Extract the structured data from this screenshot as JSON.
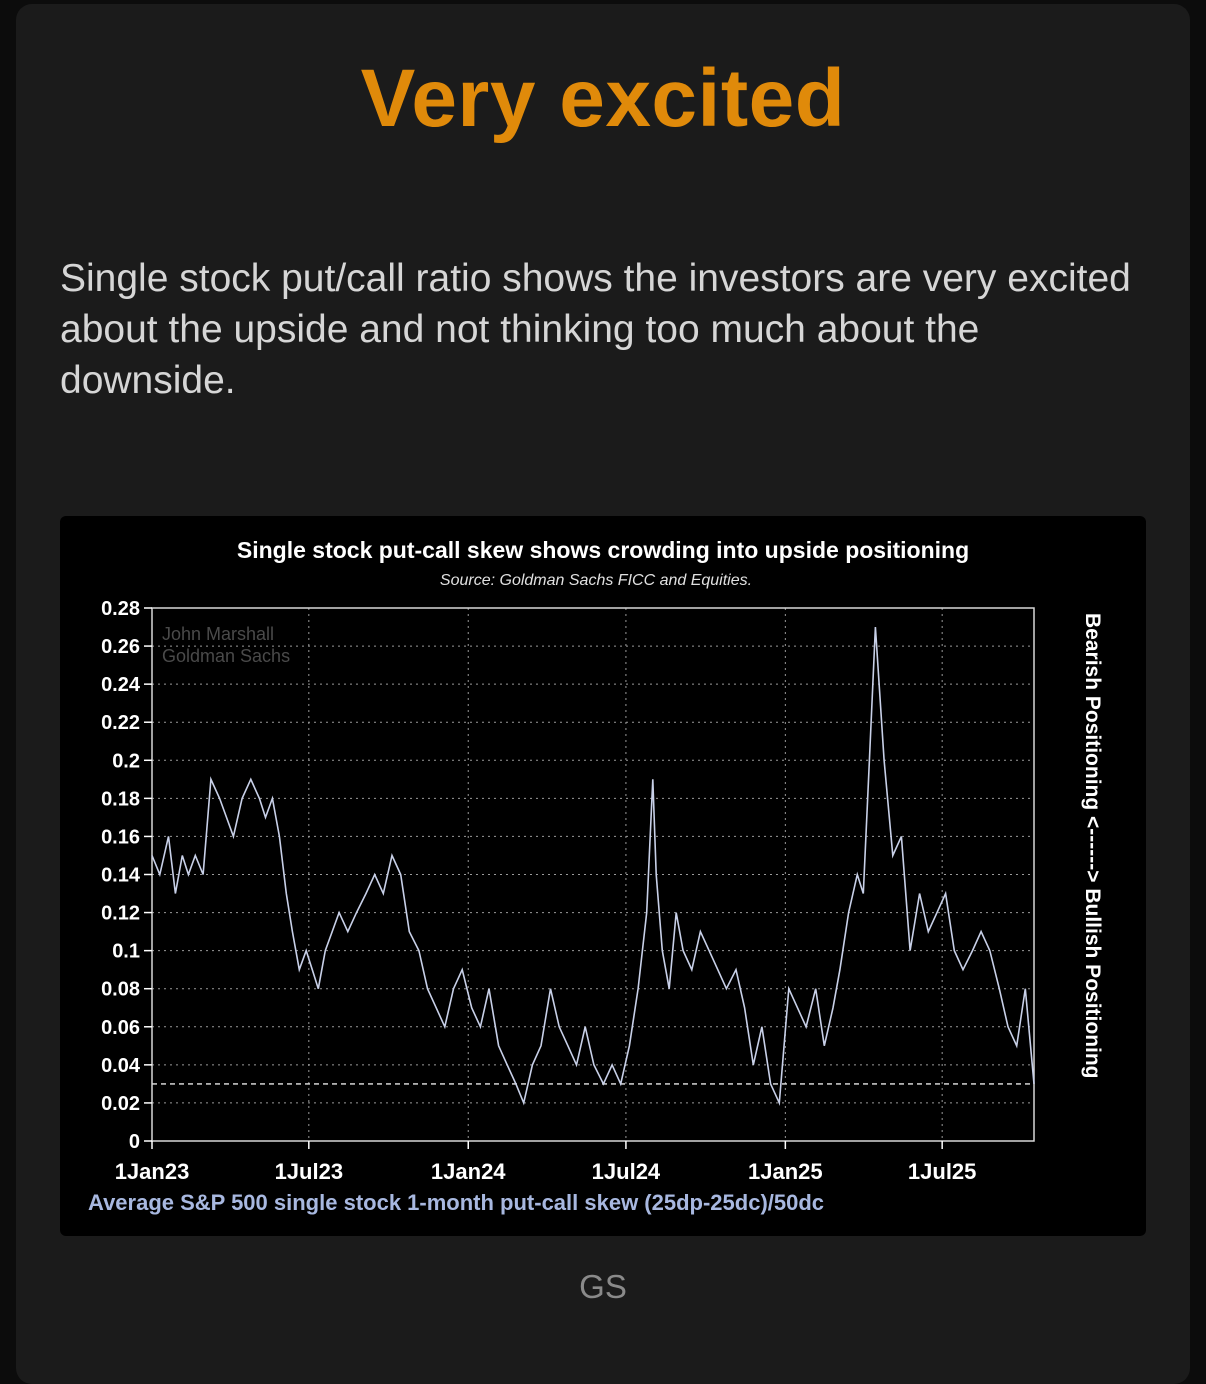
{
  "post": {
    "headline": "Very excited",
    "body": "Single stock put/call ratio shows the investors are very excited about the upside and not thinking too much about the downside.",
    "caption": "GS"
  },
  "colors": {
    "headline": "#e08a0a",
    "card_bg": "#1b1b1b",
    "line": "#c8d0e8",
    "footer_label": "#a8b8e0"
  },
  "chart_data": {
    "type": "line",
    "title": "Single stock put-call skew shows crowding into upside positioning",
    "subtitle": "Source: Goldman Sachs FICC and Equities.",
    "watermark": [
      "John Marshall",
      "Goldman Sachs"
    ],
    "right_label": "Bearish Positioning <------> Bullish Positioning",
    "xlabel": "Average S&P 500 single stock 1-month put-call skew (25dp-25dc)/50dc",
    "xticks": [
      "1Jan23",
      "1Jul23",
      "1Jan24",
      "1Jul24",
      "1Jan25",
      "1Jul25"
    ],
    "yticks": [
      "0",
      "0.02",
      "0.04",
      "0.06",
      "0.08",
      "0.1",
      "0.12",
      "0.14",
      "0.16",
      "0.18",
      "0.2",
      "0.22",
      "0.24",
      "0.26",
      "0.28"
    ],
    "ylim": [
      0,
      0.28
    ],
    "xlim": [
      "2023-01-01",
      "2025-10-15"
    ],
    "grid": true,
    "reference_line": 0.03,
    "series": [
      {
        "x": [
          "2023-01-01",
          "2023-01-10",
          "2023-01-20",
          "2023-01-28",
          "2023-02-05",
          "2023-02-12",
          "2023-02-20",
          "2023-03-01",
          "2023-03-10",
          "2023-03-20",
          "2023-03-28",
          "2023-04-05",
          "2023-04-15",
          "2023-04-25",
          "2023-05-05",
          "2023-05-12",
          "2023-05-20",
          "2023-05-28",
          "2023-06-05",
          "2023-06-12",
          "2023-06-20",
          "2023-06-28",
          "2023-07-05",
          "2023-07-12",
          "2023-07-20",
          "2023-07-28",
          "2023-08-05",
          "2023-08-15",
          "2023-08-25",
          "2023-09-05",
          "2023-09-15",
          "2023-09-25",
          "2023-10-05",
          "2023-10-15",
          "2023-10-25",
          "2023-11-05",
          "2023-11-15",
          "2023-11-25",
          "2023-12-05",
          "2023-12-15",
          "2023-12-25",
          "2024-01-05",
          "2024-01-15",
          "2024-01-25",
          "2024-02-05",
          "2024-02-15",
          "2024-02-25",
          "2024-03-05",
          "2024-03-15",
          "2024-03-25",
          "2024-04-05",
          "2024-04-15",
          "2024-04-25",
          "2024-05-05",
          "2024-05-15",
          "2024-05-25",
          "2024-06-05",
          "2024-06-15",
          "2024-06-25",
          "2024-07-05",
          "2024-07-15",
          "2024-07-25",
          "2024-08-01",
          "2024-08-05",
          "2024-08-12",
          "2024-08-20",
          "2024-08-28",
          "2024-09-05",
          "2024-09-15",
          "2024-09-25",
          "2024-10-05",
          "2024-10-15",
          "2024-10-25",
          "2024-11-05",
          "2024-11-15",
          "2024-11-25",
          "2024-12-05",
          "2024-12-15",
          "2024-12-25",
          "2025-01-05",
          "2025-01-15",
          "2025-01-25",
          "2025-02-05",
          "2025-02-15",
          "2025-02-25",
          "2025-03-05",
          "2025-03-15",
          "2025-03-25",
          "2025-04-01",
          "2025-04-08",
          "2025-04-15",
          "2025-04-25",
          "2025-05-05",
          "2025-05-15",
          "2025-05-25",
          "2025-06-05",
          "2025-06-15",
          "2025-06-25",
          "2025-07-05",
          "2025-07-15",
          "2025-07-25",
          "2025-08-05",
          "2025-08-15",
          "2025-08-25",
          "2025-09-05",
          "2025-09-15",
          "2025-09-25",
          "2025-10-05",
          "2025-10-15"
        ],
        "y": [
          0.15,
          0.14,
          0.16,
          0.13,
          0.15,
          0.14,
          0.15,
          0.14,
          0.19,
          0.18,
          0.17,
          0.16,
          0.18,
          0.19,
          0.18,
          0.17,
          0.18,
          0.16,
          0.13,
          0.11,
          0.09,
          0.1,
          0.09,
          0.08,
          0.1,
          0.11,
          0.12,
          0.11,
          0.12,
          0.13,
          0.14,
          0.13,
          0.15,
          0.14,
          0.11,
          0.1,
          0.08,
          0.07,
          0.06,
          0.08,
          0.09,
          0.07,
          0.06,
          0.08,
          0.05,
          0.04,
          0.03,
          0.02,
          0.04,
          0.05,
          0.08,
          0.06,
          0.05,
          0.04,
          0.06,
          0.04,
          0.03,
          0.04,
          0.03,
          0.05,
          0.08,
          0.12,
          0.19,
          0.14,
          0.1,
          0.08,
          0.12,
          0.1,
          0.09,
          0.11,
          0.1,
          0.09,
          0.08,
          0.09,
          0.07,
          0.04,
          0.06,
          0.03,
          0.02,
          0.08,
          0.07,
          0.06,
          0.08,
          0.05,
          0.07,
          0.09,
          0.12,
          0.14,
          0.13,
          0.2,
          0.27,
          0.2,
          0.15,
          0.16,
          0.1,
          0.13,
          0.11,
          0.12,
          0.13,
          0.1,
          0.09,
          0.1,
          0.11,
          0.1,
          0.08,
          0.06,
          0.05,
          0.08,
          0.03
        ]
      }
    ]
  }
}
